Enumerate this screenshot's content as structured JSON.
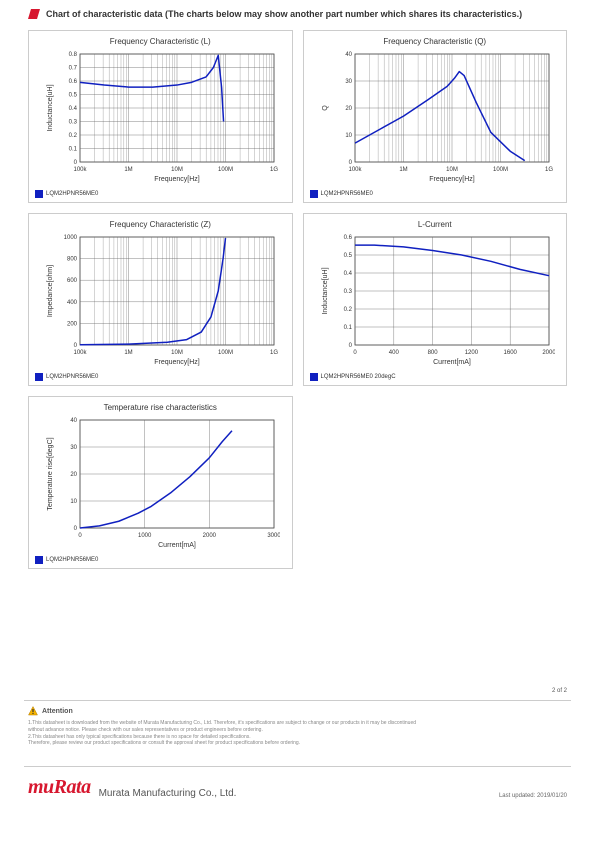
{
  "header": {
    "title": "Chart of characteristic data (The charts below may show another part number which shares its characteristics.)",
    "icon_color": "#d7172f"
  },
  "page_number": "2 of 2",
  "attention_label": "Attention",
  "disclaimer": "1.This datasheet is downloaded from the website of Murata Manufacturing Co., Ltd. Therefore, it's specifications are subject to change or our products in it may be discontinued\nwithout advance notice. Please check with our sales representatives or product engineers before ordering.\n2.This datasheet has only typical specifications because there is no space for detailed specifications.\nTherefore, please review our product specifications or consult the approval sheet for product specifications before ordering.",
  "brand_logo": "muRata",
  "brand_name": "Murata Manufacturing Co., Ltd.",
  "last_updated": "Last updated: 2019/01/20",
  "chart_style": {
    "series_color": "#1020c0",
    "grid_color": "#666666",
    "grid_stroke": 0.4,
    "border_color": "#333333",
    "background": "#ffffff",
    "title_fontsize": 8,
    "axis_fontsize": 6,
    "line_width": 1.5,
    "panel_border": "#cccccc"
  },
  "charts": [
    {
      "id": "freq-L",
      "title": "Frequency   Characteristic (L)",
      "type": "line-logx",
      "xlabel": "Frequency[Hz]",
      "ylabel": "Inductance[uH]",
      "legend": "LQM2HPNR56ME0",
      "x_ticks": [
        "100k",
        "1M",
        "10M",
        "100M",
        "1G"
      ],
      "x_log_decades": [
        5,
        6,
        7,
        8,
        9
      ],
      "ylim": [
        0,
        0.8
      ],
      "y_step": 0.1,
      "series": [
        {
          "x_log": 5.0,
          "y": 0.59
        },
        {
          "x_log": 5.5,
          "y": 0.57
        },
        {
          "x_log": 6.0,
          "y": 0.555
        },
        {
          "x_log": 6.5,
          "y": 0.555
        },
        {
          "x_log": 7.0,
          "y": 0.57
        },
        {
          "x_log": 7.3,
          "y": 0.59
        },
        {
          "x_log": 7.6,
          "y": 0.63
        },
        {
          "x_log": 7.75,
          "y": 0.7
        },
        {
          "x_log": 7.85,
          "y": 0.79
        },
        {
          "x_log": 7.92,
          "y": 0.55
        },
        {
          "x_log": 7.96,
          "y": 0.3
        }
      ]
    },
    {
      "id": "freq-Q",
      "title": "Frequency   Characteristic (Q)",
      "type": "line-logx",
      "xlabel": "Frequency[Hz]",
      "ylabel": "Q",
      "legend": "LQM2HPNR56ME0",
      "x_ticks": [
        "100k",
        "1M",
        "10M",
        "100M",
        "1G"
      ],
      "x_log_decades": [
        5,
        6,
        7,
        8,
        9
      ],
      "ylim": [
        0,
        40
      ],
      "y_step": 10,
      "series": [
        {
          "x_log": 5.0,
          "y": 7
        },
        {
          "x_log": 5.5,
          "y": 12
        },
        {
          "x_log": 6.0,
          "y": 17
        },
        {
          "x_log": 6.5,
          "y": 23
        },
        {
          "x_log": 6.9,
          "y": 28
        },
        {
          "x_log": 7.05,
          "y": 31
        },
        {
          "x_log": 7.15,
          "y": 33.5
        },
        {
          "x_log": 7.25,
          "y": 32
        },
        {
          "x_log": 7.5,
          "y": 22
        },
        {
          "x_log": 7.8,
          "y": 11
        },
        {
          "x_log": 8.2,
          "y": 4
        },
        {
          "x_log": 8.5,
          "y": 0.5
        }
      ]
    },
    {
      "id": "freq-Z",
      "title": "Frequency   Characteristic (Z)",
      "type": "line-logx",
      "xlabel": "Frequency[Hz]",
      "ylabel": "Impedance[ohm]",
      "legend": "LQM2HPNR56ME0",
      "x_ticks": [
        "100k",
        "1M",
        "10M",
        "100M",
        "1G"
      ],
      "x_log_decades": [
        5,
        6,
        7,
        8,
        9
      ],
      "ylim": [
        0,
        1000
      ],
      "y_step": 200,
      "series": [
        {
          "x_log": 5.0,
          "y": 2
        },
        {
          "x_log": 6.0,
          "y": 8
        },
        {
          "x_log": 6.8,
          "y": 25
        },
        {
          "x_log": 7.2,
          "y": 50
        },
        {
          "x_log": 7.5,
          "y": 120
        },
        {
          "x_log": 7.7,
          "y": 260
        },
        {
          "x_log": 7.85,
          "y": 500
        },
        {
          "x_log": 7.95,
          "y": 800
        },
        {
          "x_log": 8.0,
          "y": 990
        }
      ]
    },
    {
      "id": "L-current",
      "title": "L-Current",
      "type": "line-linear",
      "xlabel": "Current[mA]",
      "ylabel": "Inductance[uH]",
      "legend": "LQM2HPNR56ME0 20degC",
      "xlim": [
        0,
        2000
      ],
      "x_step": 400,
      "ylim": [
        0,
        0.6
      ],
      "y_step": 0.1,
      "series": [
        {
          "x": 0,
          "y": 0.555
        },
        {
          "x": 200,
          "y": 0.555
        },
        {
          "x": 500,
          "y": 0.545
        },
        {
          "x": 800,
          "y": 0.525
        },
        {
          "x": 1100,
          "y": 0.5
        },
        {
          "x": 1400,
          "y": 0.465
        },
        {
          "x": 1700,
          "y": 0.42
        },
        {
          "x": 2000,
          "y": 0.385
        }
      ]
    },
    {
      "id": "temp-rise",
      "title": "Temperature rise characteristics",
      "type": "line-linear",
      "xlabel": "Current[mA]",
      "ylabel": "Temperature rise[degC]",
      "legend": "LQM2HPNR56ME0",
      "xlim": [
        0,
        3000
      ],
      "x_step": 1000,
      "ylim": [
        0,
        40
      ],
      "y_step": 10,
      "series": [
        {
          "x": 0,
          "y": 0
        },
        {
          "x": 300,
          "y": 0.8
        },
        {
          "x": 600,
          "y": 2.5
        },
        {
          "x": 900,
          "y": 5.5
        },
        {
          "x": 1100,
          "y": 8
        },
        {
          "x": 1400,
          "y": 13
        },
        {
          "x": 1700,
          "y": 19
        },
        {
          "x": 2000,
          "y": 26
        },
        {
          "x": 2200,
          "y": 32
        },
        {
          "x": 2350,
          "y": 36
        }
      ]
    }
  ]
}
